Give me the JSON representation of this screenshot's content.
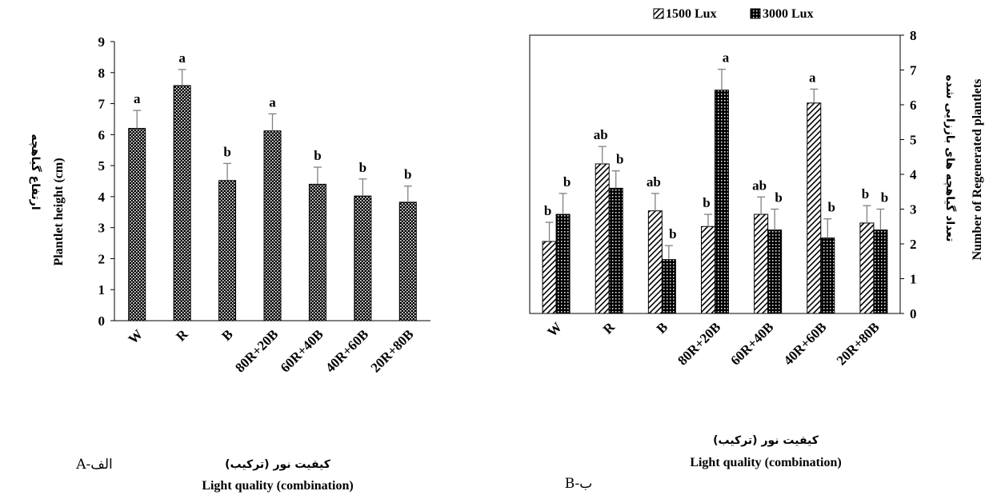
{
  "colors": {
    "bar": "#000000",
    "error_bar": "#808080",
    "axis": "#000000"
  },
  "chart_data": [
    {
      "type": "bar",
      "panel_label": "A-الف",
      "categories": [
        "W",
        "R",
        "B",
        "80R+20B",
        "60R+40B",
        "40R+60B",
        "20R+80B"
      ],
      "series": [
        {
          "values": [
            6.2,
            7.58,
            4.52,
            6.12,
            4.4,
            4.02,
            3.82
          ],
          "errors": [
            0.58,
            0.52,
            0.55,
            0.55,
            0.55,
            0.55,
            0.52
          ],
          "letters": [
            "a",
            "a",
            "b",
            "a",
            "b",
            "b",
            "b"
          ],
          "pattern": "crosshatch"
        }
      ],
      "ylabel_en": "Plantlet height (cm)",
      "ylabel_fa": "ارتفاع گیاهچه",
      "xlabel_en": "Light quality (combination)",
      "xlabel_fa": "کیفیت نور (ترکیب)",
      "ylim": [
        0,
        9
      ],
      "yticks": [
        "0",
        "1",
        "2",
        "3",
        "4",
        "5",
        "6",
        "7",
        "8",
        "9"
      ],
      "grid": false,
      "legend": "none"
    },
    {
      "type": "bar",
      "panel_label": "B-ب",
      "categories": [
        "W",
        "R",
        "B",
        "80R+20B",
        "60R+40B",
        "40R+60B",
        "20R+80B"
      ],
      "series": [
        {
          "name": "1500 Lux",
          "values": [
            2.07,
            4.3,
            2.95,
            2.5,
            2.85,
            6.05,
            2.6
          ],
          "errors": [
            0.55,
            0.5,
            0.5,
            0.35,
            0.5,
            0.4,
            0.5
          ],
          "letters": [
            "b",
            "ab",
            "ab",
            "b",
            "ab",
            "a",
            "b"
          ],
          "pattern": "diagonal"
        },
        {
          "name": "3000 Lux",
          "values": [
            2.85,
            3.6,
            1.55,
            6.42,
            2.4,
            2.17,
            2.4
          ],
          "errors": [
            0.6,
            0.5,
            0.4,
            0.6,
            0.6,
            0.55,
            0.6
          ],
          "letters": [
            "b",
            "b",
            "b",
            "a",
            "b",
            "b",
            "b"
          ],
          "pattern": "dots"
        }
      ],
      "ylabel_en": "Number of Regenerated plantlets",
      "ylabel_fa": "تعداد گیاهچه های باززایی شده",
      "xlabel_en": "Light quality (combination)",
      "xlabel_fa": "کیفیت نور (ترکیب)",
      "ylim": [
        0,
        8
      ],
      "yticks": [
        "0",
        "1",
        "2",
        "3",
        "4",
        "5",
        "6",
        "7",
        "8"
      ],
      "grid": false,
      "legend": "top"
    }
  ]
}
